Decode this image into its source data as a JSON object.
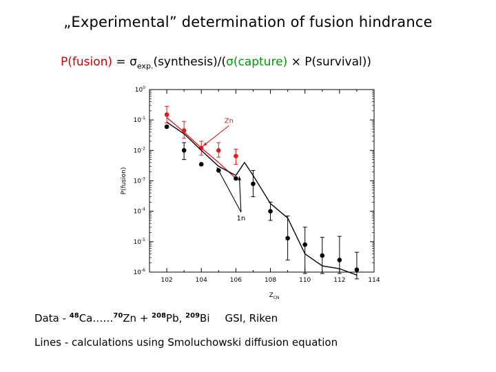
{
  "title": "„Experimental” determination of fusion hindrance",
  "formula": {
    "fusion": "P(fusion)",
    "eq": " = σ",
    "exp_sub": "exp.",
    "synthesis": "(synthesis)/(",
    "capture": "σ(capture)",
    "times": " × P(survival))"
  },
  "captions": {
    "data_prefix": "Data - ",
    "a48": "48",
    "ca": "Ca……",
    "a70": "70",
    "zn": "Zn + ",
    "a208": "208",
    "pb": "Pb, ",
    "a209": "209",
    "bi": "Bi",
    "labs": "GSI, Riken",
    "lines": "Lines - calculations using Smoluchowski diffusion equation"
  },
  "colors": {
    "red_series": "#e41a1c",
    "black_series": "#000000",
    "fusion_text": "#cc0000",
    "capture_text": "#009900"
  },
  "chart_data": {
    "type": "scatter",
    "xlabel": "Z",
    "xlabel_sub": "CN",
    "ylabel": "P(fusion)",
    "xlim": [
      101,
      114
    ],
    "ylim": [
      -6,
      0
    ],
    "y_scale": "log",
    "x_ticks": [
      102,
      104,
      106,
      108,
      110,
      112,
      114
    ],
    "y_ticks": [
      {
        "exp": 0,
        "label_base": "10",
        "label_exp": "0"
      },
      {
        "exp": -1,
        "label_base": "10",
        "label_exp": "-1"
      },
      {
        "exp": -2,
        "label_base": "10",
        "label_exp": "-2"
      },
      {
        "exp": -3,
        "label_base": "10",
        "label_exp": "-3"
      },
      {
        "exp": -4,
        "label_base": "10",
        "label_exp": "-4"
      },
      {
        "exp": -5,
        "label_base": "10",
        "label_exp": "-5"
      },
      {
        "exp": -6,
        "label_base": "10",
        "label_exp": "-6"
      }
    ],
    "series": [
      {
        "name": "Zn",
        "color": "#e41a1c",
        "points": [
          {
            "x": 102,
            "y": 0.15,
            "err": [
              0.08,
              0.28
            ]
          },
          {
            "x": 103,
            "y": 0.045,
            "err": [
              0.025,
              0.09
            ]
          },
          {
            "x": 104,
            "y": 0.012,
            "err": [
              0.007,
              0.02
            ]
          },
          {
            "x": 105,
            "y": 0.01,
            "err": [
              0.006,
              0.018
            ]
          },
          {
            "x": 106,
            "y": 0.0065,
            "err": [
              0.0035,
              0.011
            ]
          }
        ],
        "line": [
          {
            "x": 102,
            "y": 0.12
          },
          {
            "x": 103,
            "y": 0.04
          },
          {
            "x": 104,
            "y": 0.012
          },
          {
            "x": 105,
            "y": 0.004
          },
          {
            "x": 106,
            "y": 0.0012
          }
        ]
      },
      {
        "name": "1n",
        "color": "#000000",
        "points": [
          {
            "x": 102,
            "y": 0.06
          },
          {
            "x": 103,
            "y": 0.01,
            "err": [
              0.005,
              0.018
            ]
          },
          {
            "x": 104,
            "y": 0.0035
          },
          {
            "x": 105,
            "y": 0.0022
          },
          {
            "x": 106,
            "y": 0.0012
          },
          {
            "x": 107,
            "y": 0.0008,
            "err": [
              0.0003,
              0.0022
            ]
          },
          {
            "x": 108,
            "y": 0.0001,
            "err": [
              5e-05,
              0.0002
            ]
          },
          {
            "x": 109,
            "y": 1.3e-05,
            "err": [
              2.5e-06,
              7e-05
            ]
          },
          {
            "x": 110,
            "y": 8e-06,
            "err": [
              9e-07,
              3e-05
            ]
          },
          {
            "x": 111,
            "y": 3.5e-06,
            "err": [
              9e-07,
              1.4e-05
            ]
          },
          {
            "x": 112,
            "y": 2.5e-06,
            "err": [
              9e-07,
              1.5e-05
            ]
          },
          {
            "x": 113,
            "y": 1.2e-06,
            "err": [
              6e-07,
              4.5e-06
            ]
          }
        ],
        "line": [
          {
            "x": 102,
            "y": 0.085
          },
          {
            "x": 103,
            "y": 0.035
          },
          {
            "x": 104,
            "y": 0.01
          },
          {
            "x": 105,
            "y": 0.003
          },
          {
            "x": 106,
            "y": 0.0015
          },
          {
            "x": 106.5,
            "y": 0.004
          },
          {
            "x": 107,
            "y": 0.0015
          },
          {
            "x": 108,
            "y": 0.00018
          },
          {
            "x": 109,
            "y": 6e-05
          },
          {
            "x": 110,
            "y": 4e-06
          },
          {
            "x": 111,
            "y": 1.6e-06
          },
          {
            "x": 112,
            "y": 1.3e-06
          },
          {
            "x": 113,
            "y": 8e-07
          }
        ]
      }
    ],
    "annotations": [
      {
        "text": "Zn",
        "color": "#e41a1c",
        "x": 105.6,
        "y": 0.08,
        "arrow_to": {
          "x": 104.1,
          "y": 0.014
        }
      },
      {
        "text": "1n",
        "color": "#000000",
        "x": 106.3,
        "y": 5e-05,
        "arrows_to": [
          {
            "x": 104.9,
            "y": 0.0028
          },
          {
            "x": 106.2,
            "y": 0.0014
          }
        ]
      }
    ]
  }
}
